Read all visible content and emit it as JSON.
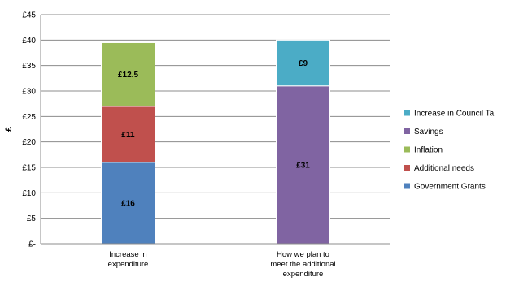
{
  "chart_data": {
    "type": "bar",
    "stacked": true,
    "categories": [
      [
        "Increase in",
        "expenditure"
      ],
      [
        "How we plan to",
        "meet the additional",
        "expenditure"
      ]
    ],
    "series": [
      {
        "name": "Government Grants",
        "color": "#4f81bd",
        "values": [
          16,
          0
        ],
        "labels": [
          "£16",
          ""
        ]
      },
      {
        "name": "Additional needs",
        "color": "#c0504d",
        "values": [
          11,
          0
        ],
        "labels": [
          "£11",
          ""
        ]
      },
      {
        "name": "Inflation",
        "color": "#9bbb59",
        "values": [
          12.5,
          0
        ],
        "labels": [
          "£12.5",
          ""
        ]
      },
      {
        "name": "Savings",
        "color": "#8064a2",
        "values": [
          0,
          31
        ],
        "labels": [
          "",
          "£31"
        ]
      },
      {
        "name": "Increase in Council Ta",
        "color": "#4bacc6",
        "values": [
          0,
          9
        ],
        "labels": [
          "",
          "£9"
        ]
      }
    ],
    "yticks": [
      "£-",
      "£5",
      "£10",
      "£15",
      "£20",
      "£25",
      "£30",
      "£35",
      "£40",
      "£45"
    ],
    "ylabel": "£",
    "xlabel": "",
    "title": "",
    "ylim": [
      0,
      45
    ],
    "grid": true,
    "legend": "right",
    "legend_order": [
      "Increase in Council Ta",
      "Savings",
      "Inflation",
      "Additional needs",
      "Government Grants"
    ]
  }
}
